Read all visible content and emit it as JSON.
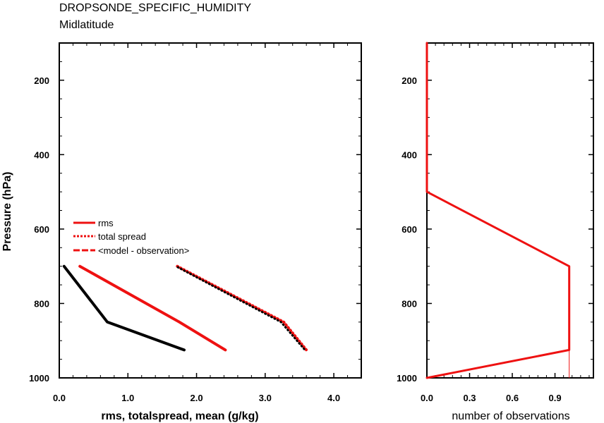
{
  "title": "DROPSONDE_SPECIFIC_HUMIDITY",
  "subtitle": "Midlatitude",
  "colors": {
    "rms": "#ee1111",
    "spread": "#ee1111",
    "mean": "#000000",
    "obs": "#ee1111"
  },
  "chart_data": [
    {
      "type": "line",
      "panel": "left",
      "xlabel": "rms, totalspread, mean (g/kg)",
      "ylabel": "Pressure (hPa)",
      "xlim": [
        0,
        4.4
      ],
      "ylim": [
        1000,
        100
      ],
      "y_reversed": true,
      "xticks": [
        0.0,
        1.0,
        2.0,
        3.0,
        4.0
      ],
      "xtick_labels": [
        "0.0",
        "1.0",
        "2.0",
        "3.0",
        "4.0"
      ],
      "yticks": [
        200,
        400,
        600,
        800,
        1000
      ],
      "ytick_labels": [
        "200",
        "400",
        "600",
        "800",
        "1000"
      ],
      "legend_position": "left-middle",
      "legend": [
        "rms",
        "total spread",
        "<model - observation>"
      ],
      "series": [
        {
          "name": "rms",
          "style": "solid",
          "x": [
            0.3,
            1.75,
            2.42
          ],
          "y": [
            700,
            850,
            925
          ]
        },
        {
          "name": "total spread",
          "style": "dotted",
          "x": [
            1.72,
            3.27,
            3.6
          ],
          "y": [
            700,
            850,
            925
          ]
        },
        {
          "name": "<model - observation>",
          "style": "dashed",
          "x": [
            0.07,
            0.7,
            1.82
          ],
          "y": [
            700,
            850,
            925
          ]
        },
        {
          "name": "",
          "style": "dotted-black",
          "x": [
            1.7,
            3.23,
            3.58
          ],
          "y": [
            700,
            850,
            925
          ]
        }
      ]
    },
    {
      "type": "line",
      "panel": "right",
      "xlabel": "number of observations",
      "ylabel": "",
      "xlim": [
        0,
        1.17
      ],
      "ylim": [
        1000,
        100
      ],
      "y_reversed": true,
      "xticks": [
        0.0,
        0.3,
        0.6,
        0.9
      ],
      "xtick_labels": [
        "0.0",
        "0.3",
        "0.6",
        "0.9"
      ],
      "yticks": [
        200,
        400,
        600,
        800,
        1000
      ],
      "ytick_labels": [
        "200",
        "400",
        "600",
        "800",
        "1000"
      ],
      "series": [
        {
          "name": "",
          "x": [
            0,
            0,
            1,
            1,
            0
          ],
          "y": [
            100,
            500,
            700,
            925,
            1000
          ]
        }
      ]
    }
  ]
}
